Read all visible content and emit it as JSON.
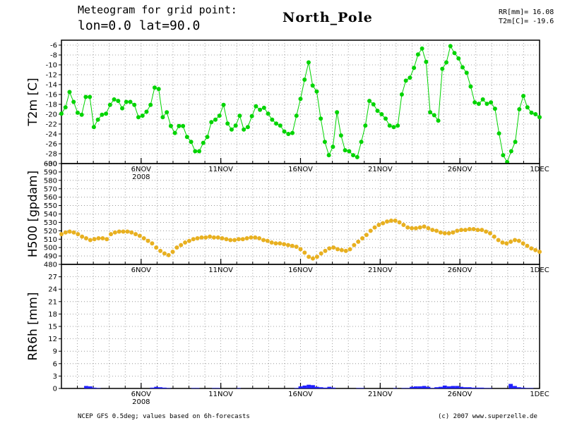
{
  "header": {
    "line1": "Meteogram for grid point:",
    "line2": "lon=0.0 lat=90.0",
    "location": "North_Pole",
    "stat_rr": "RR[mm]= 16.08",
    "stat_t2m": "T2m[C]= -19.6"
  },
  "footer": {
    "left": "NCEP GFS 0.5deg; values based on 6h-forecasts",
    "right": "(c) 2007 www.superzelle.de"
  },
  "colors": {
    "t2m": "#00d400",
    "h500": "#e8b020",
    "rr": "#2020ff"
  },
  "chart_data": [
    {
      "type": "line",
      "name": "t2m-panel",
      "ylabel": "T2m [C]",
      "ylim": [
        -30,
        -5
      ],
      "yticks": [
        -6,
        -8,
        -10,
        -12,
        -14,
        -16,
        -18,
        -20,
        -22,
        -24,
        -26,
        -28,
        -30
      ],
      "xlim": [
        0,
        30
      ],
      "xticks": [
        {
          "x": 5,
          "label": "6NOV",
          "sub": "2008"
        },
        {
          "x": 10,
          "label": "11NOV"
        },
        {
          "x": 15,
          "label": "16NOV"
        },
        {
          "x": 20,
          "label": "21NOV"
        },
        {
          "x": 25,
          "label": "26NOV"
        },
        {
          "x": 30,
          "label": "1DEC"
        }
      ],
      "grid": true,
      "series": [
        {
          "values": [
            -19.9,
            -18.6,
            -15.5,
            -17.5,
            -19.7,
            -20.1,
            -16.5,
            -16.5,
            -22.6,
            -21.1,
            -20.1,
            -19.9,
            -18.1,
            -17.0,
            -17.3,
            -18.8,
            -17.5,
            -17.5,
            -18.1,
            -20.6,
            -20.3,
            -19.5,
            -18.1,
            -14.6,
            -14.9,
            -20.6,
            -19.6,
            -22.4,
            -23.8,
            -22.4,
            -22.4,
            -24.6,
            -25.6,
            -27.5,
            -27.5,
            -25.8,
            -24.6,
            -21.6,
            -21.1,
            -20.3,
            -18.1,
            -21.9,
            -23.1,
            -22.3,
            -20.3,
            -23.1,
            -22.6,
            -20.4,
            -18.4,
            -19.1,
            -18.7,
            -19.9,
            -21.1,
            -21.9,
            -22.3,
            -23.5,
            -24.0,
            -23.8,
            -20.3,
            -16.9,
            -13.0,
            -9.5,
            -14.2,
            -15.4,
            -20.9,
            -25.6,
            -28.3,
            -26.6,
            -19.6,
            -24.3,
            -27.3,
            -27.5,
            -28.3,
            -28.7,
            -25.6,
            -22.3,
            -17.3,
            -18.0,
            -19.3,
            -20.0,
            -20.9,
            -22.3,
            -22.6,
            -22.3,
            -16.0,
            -13.2,
            -12.6,
            -10.6,
            -7.9,
            -6.7,
            -9.4,
            -19.6,
            -20.2,
            -21.3,
            -10.8,
            -9.5,
            -6.2,
            -7.6,
            -8.7,
            -10.5,
            -11.6,
            -14.4,
            -17.6,
            -17.9,
            -17.0,
            -17.9,
            -17.6,
            -18.9,
            -23.9,
            -28.3,
            -29.7,
            -27.5,
            -25.6,
            -19.0,
            -16.3,
            -18.6,
            -19.7,
            -20.0,
            -20.6
          ]
        }
      ]
    },
    {
      "type": "line",
      "name": "h500-panel",
      "ylabel": "H500 [gpdam]",
      "ylim": [
        480,
        600
      ],
      "yticks": [
        480,
        490,
        500,
        510,
        520,
        530,
        540,
        550,
        560,
        570,
        580,
        590,
        600
      ],
      "xlim": [
        0,
        30
      ],
      "grid": true,
      "series": [
        {
          "values": [
            516,
            518,
            519,
            518,
            516,
            513,
            511,
            509,
            510,
            511,
            511,
            510,
            516,
            518,
            519,
            519,
            519,
            518,
            516,
            514,
            511,
            508,
            505,
            500,
            496,
            493,
            491,
            495,
            500,
            503,
            506,
            508,
            510,
            511,
            512,
            512,
            513,
            512,
            512,
            511,
            510,
            509,
            509,
            510,
            510,
            511,
            512,
            512,
            511,
            509,
            508,
            506,
            505,
            505,
            504,
            503,
            502,
            501,
            498,
            494,
            489,
            487,
            489,
            493,
            496,
            499,
            500,
            498,
            497,
            496,
            498,
            503,
            507,
            511,
            515,
            520,
            524,
            527,
            529,
            531,
            532,
            532,
            530,
            527,
            524,
            523,
            523,
            524,
            525,
            523,
            521,
            520,
            518,
            517,
            517,
            518,
            520,
            521,
            521,
            522,
            522,
            521,
            521,
            519,
            517,
            513,
            509,
            506,
            505,
            507,
            509,
            508,
            505,
            502,
            499,
            497,
            495
          ]
        }
      ]
    },
    {
      "type": "bar",
      "name": "rr-panel",
      "ylabel": "RR6h [mm]",
      "ylim": [
        0,
        30
      ],
      "yticks": [
        0,
        3,
        6,
        9,
        12,
        15,
        18,
        21,
        24,
        27
      ],
      "xlim": [
        0,
        30
      ],
      "xticks": [
        {
          "x": 5,
          "label": "6NOV",
          "sub": "2008"
        },
        {
          "x": 10,
          "label": "11NOV"
        },
        {
          "x": 15,
          "label": "16NOV"
        },
        {
          "x": 20,
          "label": "21NOV"
        },
        {
          "x": 25,
          "label": "26NOV"
        },
        {
          "x": 30,
          "label": "1DEC"
        }
      ],
      "grid": true,
      "series": [
        {
          "values": [
            0,
            0,
            0,
            0,
            0,
            0,
            0.6,
            0.5,
            0.2,
            0.1,
            0,
            0,
            0,
            0,
            0,
            0,
            0,
            0,
            0,
            0,
            0,
            0,
            0.2,
            0.4,
            0.3,
            0.2,
            0.1,
            0,
            0,
            0,
            0,
            0,
            0.1,
            0.1,
            0,
            0,
            0,
            0.1,
            0.1,
            0,
            0,
            0,
            0,
            0.1,
            0,
            0,
            0,
            0,
            0,
            0,
            0,
            0,
            0,
            0,
            0,
            0,
            0,
            0.1,
            0.5,
            0.7,
            0.9,
            0.8,
            0.4,
            0.3,
            0.2,
            0.4,
            0.2,
            0,
            0,
            0,
            0,
            0,
            0.1,
            0.1,
            0,
            0,
            0,
            0,
            0,
            0,
            0,
            0.1,
            0,
            0.1,
            0.1,
            0.4,
            0.5,
            0.5,
            0.6,
            0.4,
            0.1,
            0.3,
            0.4,
            0.7,
            0.5,
            0.6,
            0.6,
            0.4,
            0.3,
            0.3,
            0.2,
            0.2,
            0.2,
            0.1,
            0.1,
            0,
            0,
            0,
            0,
            1.1,
            0.6,
            0.3,
            0.2,
            0.1,
            0.1,
            0,
            0
          ]
        }
      ]
    }
  ]
}
